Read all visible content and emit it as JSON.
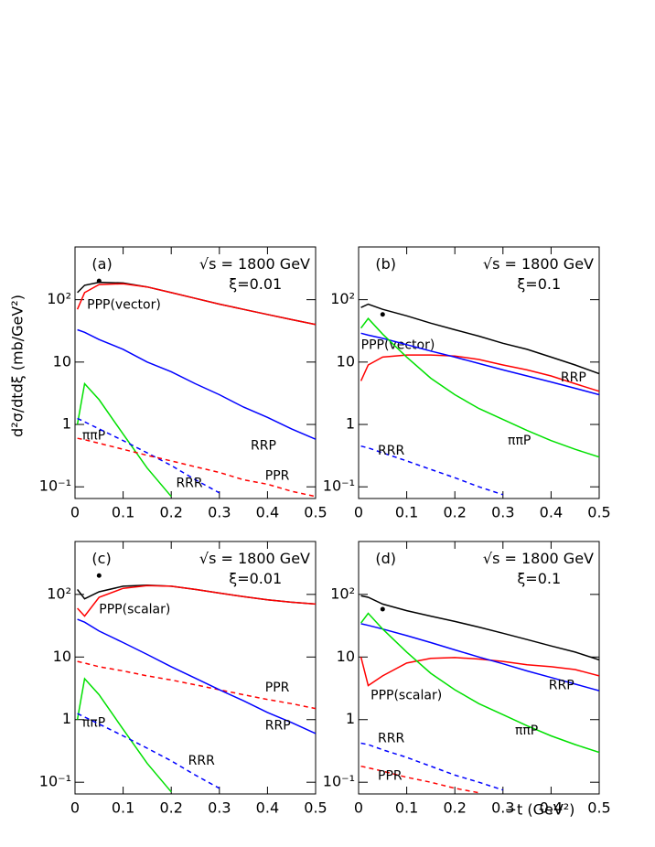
{
  "axes": {
    "xlabel": "−t  (GeV²)",
    "ylabel": "d²σ/dtdξ  (mb/GeV²)"
  },
  "chart_data": [
    {
      "type": "line",
      "panel": "(a)",
      "energy": "√s = 1800 GeV",
      "xi": "ξ=0.01",
      "log_y": true,
      "x": [
        0.005,
        0.02,
        0.05,
        0.1,
        0.15,
        0.2,
        0.25,
        0.3,
        0.35,
        0.4,
        0.45,
        0.5
      ],
      "xlim": [
        0,
        0.5
      ],
      "xticks": [
        0,
        0.1,
        0.2,
        0.3,
        0.4,
        0.5
      ],
      "ylim": [
        0.065,
        700
      ],
      "yticks": [
        {
          "value": 0.1,
          "label": "10⁻¹"
        },
        1,
        10,
        {
          "value": 100,
          "label": "10²"
        }
      ],
      "series": [
        {
          "color": "#000000",
          "values": [
            130,
            170,
            190,
            185,
            160,
            130,
            105,
            85,
            70,
            58,
            48,
            40
          ]
        },
        {
          "name": "PPP(vector)",
          "color": "#ff0000",
          "values": [
            70,
            130,
            175,
            180,
            160,
            130,
            105,
            85,
            70,
            58,
            48,
            40
          ]
        },
        {
          "name": "RRP",
          "color": "#0000ff",
          "values": [
            33,
            30,
            23,
            16,
            10,
            7,
            4.5,
            3,
            1.9,
            1.3,
            0.85,
            0.58
          ]
        },
        {
          "name": "ππP",
          "color": "#00e000",
          "values": [
            1,
            4.5,
            2.5,
            0.7,
            0.2,
            0.07,
            null,
            null,
            null,
            null,
            null,
            null
          ]
        },
        {
          "name": "RRR",
          "color": "#0000ff",
          "dash": true,
          "values": [
            1.25,
            1.1,
            0.85,
            0.55,
            0.35,
            0.22,
            0.13,
            0.08,
            null,
            null,
            null,
            null
          ]
        },
        {
          "name": "PPR",
          "color": "#ff0000",
          "dash": true,
          "values": [
            0.6,
            0.57,
            0.5,
            0.4,
            0.32,
            0.26,
            0.21,
            0.17,
            0.13,
            0.11,
            0.085,
            0.07
          ]
        }
      ],
      "points": {
        "x": [
          0.05
        ],
        "y": [
          200
        ]
      }
    },
    {
      "type": "line",
      "panel": "(b)",
      "energy": "√s = 1800 GeV",
      "xi": "ξ=0.1",
      "log_y": true,
      "x": [
        0.005,
        0.02,
        0.05,
        0.1,
        0.15,
        0.2,
        0.25,
        0.3,
        0.35,
        0.4,
        0.45,
        0.5
      ],
      "xlim": [
        0,
        0.5
      ],
      "xticks": [
        0,
        0.1,
        0.2,
        0.3,
        0.4,
        0.5
      ],
      "ylim": [
        0.065,
        700
      ],
      "yticks": [
        {
          "value": 0.1,
          "label": "10⁻¹"
        },
        1,
        10,
        {
          "value": 100,
          "label": "10²"
        }
      ],
      "series": [
        {
          "color": "#000000",
          "values": [
            75,
            85,
            70,
            55,
            42,
            33,
            26,
            20,
            16,
            12,
            9,
            6.5
          ]
        },
        {
          "name": "PPP(vector)",
          "color": "#ff0000",
          "values": [
            5,
            9,
            12,
            13,
            13,
            12.5,
            11,
            9,
            7.5,
            6,
            4.5,
            3.4
          ]
        },
        {
          "name": "RRP",
          "color": "#0000ff",
          "values": [
            29,
            27,
            24,
            19,
            15,
            12,
            9.5,
            7.5,
            6,
            4.8,
            3.8,
            3
          ]
        },
        {
          "name": "ππP",
          "color": "#00e000",
          "values": [
            35,
            50,
            28,
            12,
            5.5,
            3,
            1.8,
            1.2,
            0.8,
            0.55,
            0.4,
            0.3
          ]
        },
        {
          "name": "RRR",
          "color": "#0000ff",
          "dash": true,
          "values": [
            0.45,
            0.42,
            0.35,
            0.26,
            0.19,
            0.14,
            0.1,
            0.075,
            null,
            null,
            null,
            null
          ]
        }
      ],
      "points": {
        "x": [
          0.05
        ],
        "y": [
          58
        ]
      }
    },
    {
      "type": "line",
      "panel": "(c)",
      "energy": "√s = 1800 GeV",
      "xi": "ξ=0.01",
      "log_y": true,
      "x": [
        0.005,
        0.02,
        0.05,
        0.1,
        0.15,
        0.2,
        0.25,
        0.3,
        0.35,
        0.4,
        0.45,
        0.5
      ],
      "xlim": [
        0,
        0.5
      ],
      "xticks": [
        0,
        0.1,
        0.2,
        0.3,
        0.4,
        0.5
      ],
      "ylim": [
        0.065,
        700
      ],
      "yticks": [
        {
          "value": 0.1,
          "label": "10⁻¹"
        },
        1,
        10,
        {
          "value": 100,
          "label": "10²"
        }
      ],
      "series": [
        {
          "color": "#000000",
          "values": [
            120,
            85,
            110,
            135,
            140,
            135,
            120,
            105,
            92,
            82,
            75,
            70
          ]
        },
        {
          "name": "PPP(scalar)",
          "color": "#ff0000",
          "values": [
            60,
            45,
            90,
            125,
            138,
            135,
            120,
            105,
            92,
            82,
            75,
            70
          ]
        },
        {
          "name": "PPR",
          "color": "#ff0000",
          "dash": true,
          "values": [
            8.5,
            8,
            7,
            6,
            5,
            4.3,
            3.6,
            3,
            2.5,
            2.1,
            1.8,
            1.5
          ]
        },
        {
          "name": "RRP",
          "color": "#0000ff",
          "values": [
            40,
            36,
            26,
            17,
            11,
            7,
            4.6,
            3,
            2,
            1.3,
            0.9,
            0.6
          ]
        },
        {
          "name": "ππP",
          "color": "#00e000",
          "values": [
            1,
            4.5,
            2.5,
            0.7,
            0.2,
            0.07,
            null,
            null,
            null,
            null,
            null,
            null
          ]
        },
        {
          "name": "RRR",
          "color": "#0000ff",
          "dash": true,
          "values": [
            1.25,
            1.1,
            0.85,
            0.55,
            0.35,
            0.22,
            0.13,
            0.08,
            null,
            null,
            null,
            null
          ]
        }
      ],
      "points": {
        "x": [
          0.05
        ],
        "y": [
          200
        ]
      }
    },
    {
      "type": "line",
      "panel": "(d)",
      "energy": "√s = 1800 GeV",
      "xi": "ξ=0.1",
      "log_y": true,
      "x": [
        0.005,
        0.02,
        0.05,
        0.1,
        0.15,
        0.2,
        0.25,
        0.3,
        0.35,
        0.4,
        0.45,
        0.5
      ],
      "xlim": [
        0,
        0.5
      ],
      "xticks": [
        0,
        0.1,
        0.2,
        0.3,
        0.4,
        0.5
      ],
      "ylim": [
        0.065,
        700
      ],
      "yticks": [
        {
          "value": 0.1,
          "label": "10⁻¹"
        },
        1,
        10,
        {
          "value": 100,
          "label": "10²"
        }
      ],
      "series": [
        {
          "color": "#000000",
          "values": [
            95,
            90,
            70,
            55,
            45,
            37,
            30,
            24,
            19,
            15,
            12,
            9
          ]
        },
        {
          "name": "PPP(scalar)",
          "color": "#ff0000",
          "values": [
            10,
            3.5,
            5,
            8,
            9.5,
            9.8,
            9.3,
            8.5,
            7.5,
            7,
            6.3,
            5
          ]
        },
        {
          "name": "RRP",
          "color": "#0000ff",
          "values": [
            34,
            32,
            28,
            22,
            17,
            13,
            10,
            7.8,
            6,
            4.7,
            3.7,
            2.9
          ]
        },
        {
          "name": "ππP",
          "color": "#00e000",
          "values": [
            35,
            50,
            28,
            12,
            5.5,
            3,
            1.8,
            1.2,
            0.8,
            0.55,
            0.4,
            0.3
          ]
        },
        {
          "name": "RRR",
          "color": "#0000ff",
          "dash": true,
          "values": [
            0.42,
            0.4,
            0.33,
            0.25,
            0.18,
            0.13,
            0.1,
            0.075,
            null,
            null,
            null,
            null
          ]
        },
        {
          "name": "PPR",
          "color": "#ff0000",
          "dash": true,
          "values": [
            0.18,
            0.17,
            0.15,
            0.12,
            0.1,
            0.08,
            0.068,
            null,
            null,
            null,
            null,
            null
          ]
        }
      ],
      "points": {
        "x": [
          0.05
        ],
        "y": [
          58
        ]
      }
    }
  ]
}
